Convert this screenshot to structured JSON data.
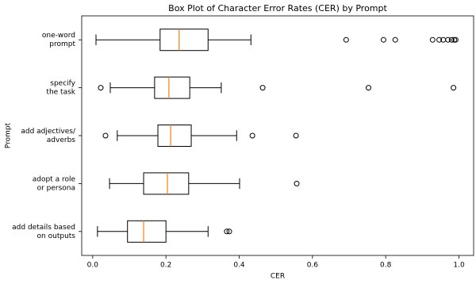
{
  "chart_data": {
    "type": "boxplot",
    "orientation": "horizontal",
    "title": "Box Plot of Character Error Rates (CER) by Prompt",
    "xlabel": "CER",
    "ylabel": "Prompt",
    "categories": [
      [
        "one-word",
        "prompt"
      ],
      [
        "specify",
        "the task"
      ],
      [
        "add adjectives/",
        "adverbs"
      ],
      [
        "adopt a role",
        "or persona"
      ],
      [
        "add details based",
        "on outputs"
      ]
    ],
    "boxes": [
      {
        "whislo": 0.009,
        "q1": 0.184,
        "med": 0.236,
        "q3": 0.315,
        "whishi": 0.432,
        "fliers": [
          0.692,
          0.794,
          0.826,
          0.928,
          0.946,
          0.957,
          0.97,
          0.98,
          0.987,
          0.991
        ]
      },
      {
        "whislo": 0.048,
        "q1": 0.169,
        "med": 0.208,
        "q3": 0.265,
        "whishi": 0.351,
        "fliers": [
          0.022,
          0.464,
          0.753,
          0.985
        ]
      },
      {
        "whislo": 0.067,
        "q1": 0.178,
        "med": 0.213,
        "q3": 0.269,
        "whishi": 0.393,
        "fliers": [
          0.035,
          0.436,
          0.555
        ]
      },
      {
        "whislo": 0.046,
        "q1": 0.139,
        "med": 0.204,
        "q3": 0.262,
        "whishi": 0.401,
        "fliers": [
          0.557
        ]
      },
      {
        "whislo": 0.013,
        "q1": 0.095,
        "med": 0.139,
        "q3": 0.2,
        "whishi": 0.315,
        "fliers": [
          0.366,
          0.373
        ]
      }
    ],
    "box_color": "#000000",
    "median_color": "#ff7f0e",
    "xlim": [
      -0.03,
      1.04
    ],
    "xticks": [
      {
        "value": 0,
        "label": "0.0"
      },
      0.2,
      0.4,
      0.6,
      0.8,
      {
        "value": 1,
        "label": "1.0"
      }
    ]
  }
}
